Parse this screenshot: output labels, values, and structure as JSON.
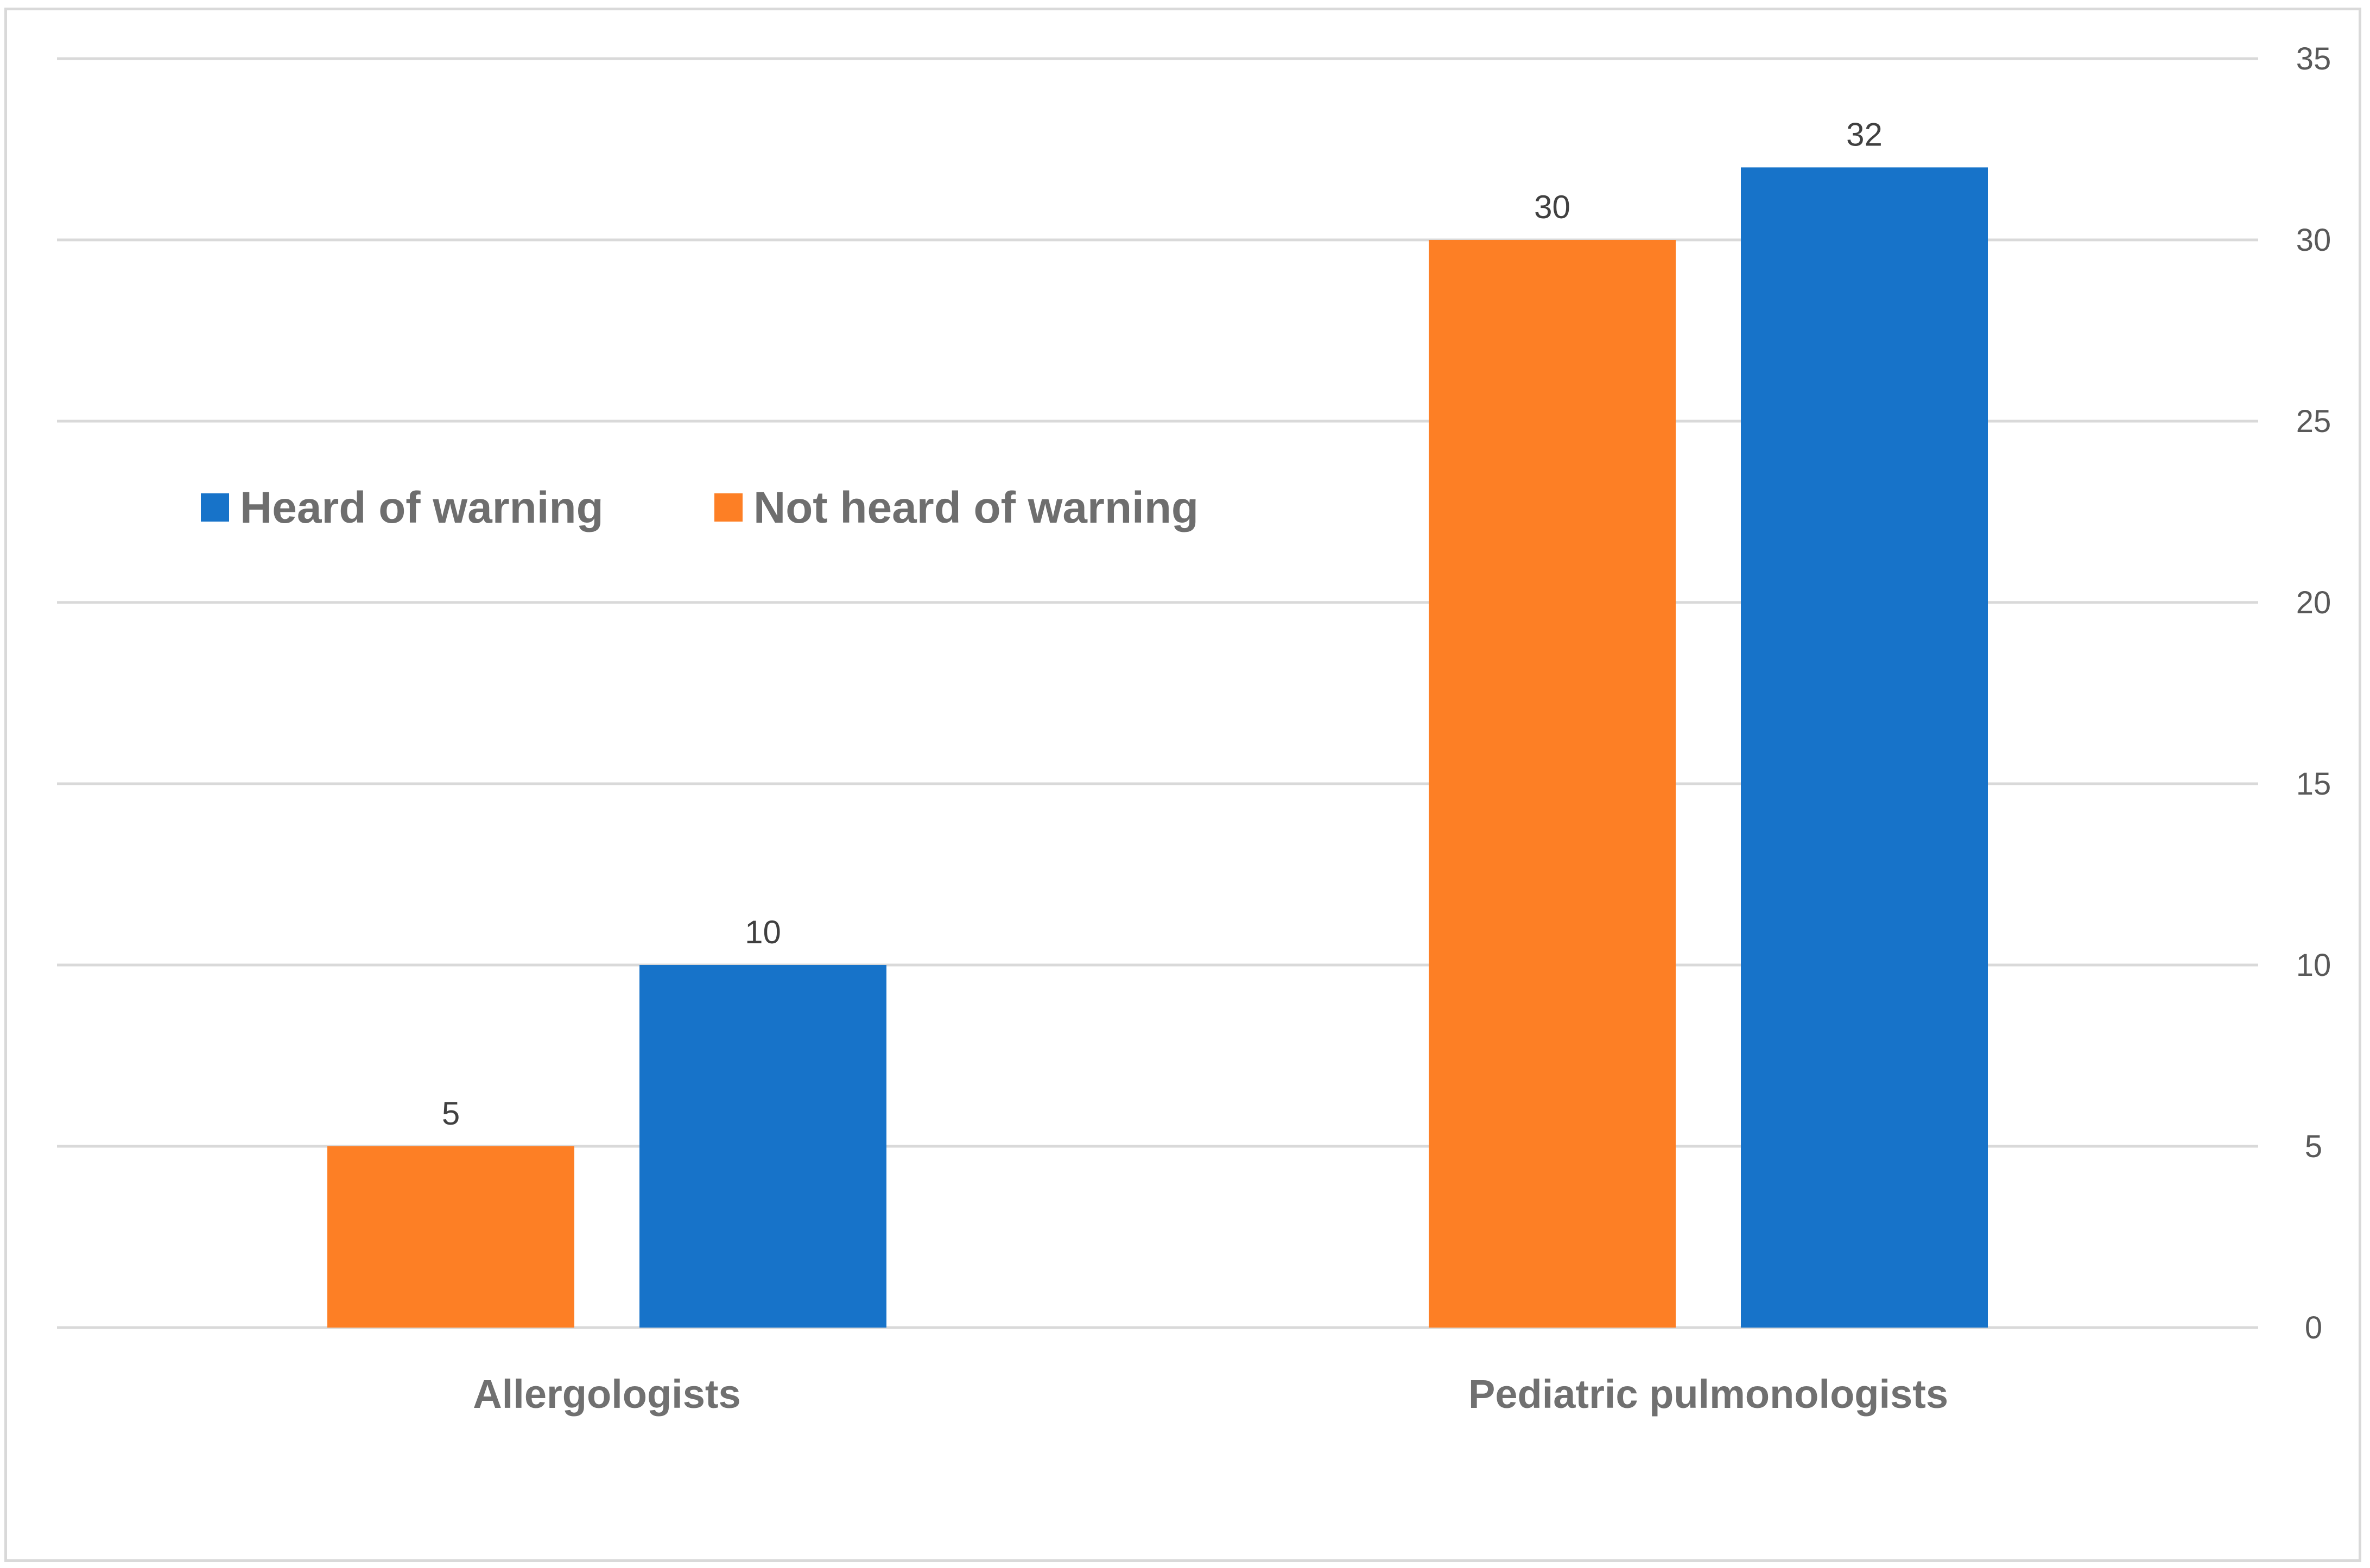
{
  "chart_data": {
    "type": "bar",
    "title": "",
    "xlabel": "",
    "ylabel": "",
    "categories": [
      "Allergologists",
      "Pediatric pulmonologists"
    ],
    "series": [
      {
        "name": "Not heard of warning",
        "color": "#fd7f25",
        "values": [
          5,
          30
        ]
      },
      {
        "name": "Heard of warning",
        "color": "#1773c9",
        "values": [
          10,
          32
        ]
      }
    ],
    "legend_order": [
      "Heard of warning",
      "Not heard of warning"
    ],
    "legend_position": "upper-left",
    "ylim": [
      0,
      35
    ],
    "yticks": [
      "0",
      "5",
      "10",
      "15",
      "20",
      "25",
      "30",
      "35"
    ],
    "y_axis_side": "right",
    "grid": true,
    "data_labels": [
      [
        "5",
        "30"
      ],
      [
        "10",
        "32"
      ]
    ]
  }
}
